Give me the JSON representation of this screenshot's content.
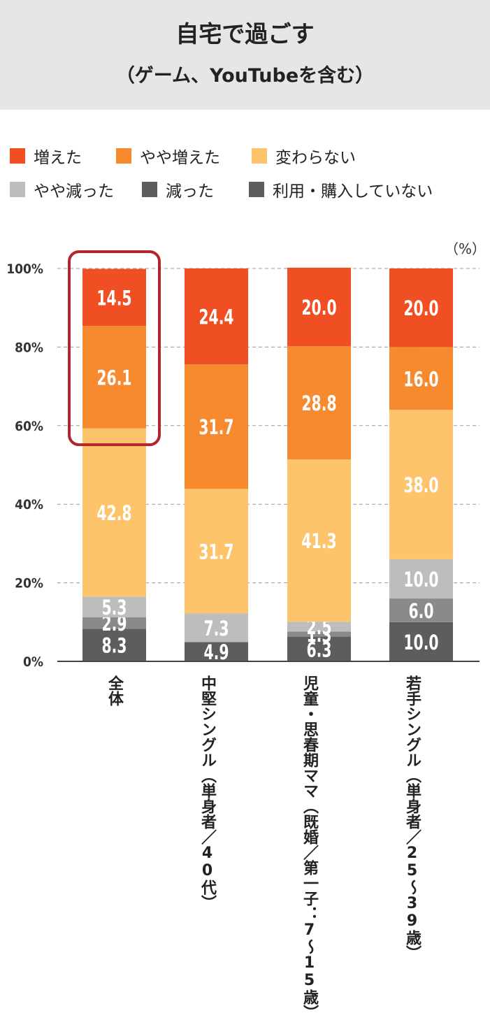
{
  "title": "自宅で過ごす",
  "subtitle": "（ゲーム、YouTubeを含む）",
  "unit_label": "（%）",
  "colors": {
    "increased": "#f04e23",
    "slightly_increased": "#f7892e",
    "unchanged": "#fdc46c",
    "slightly_decreased": "#bdbdbd",
    "decreased": "#8a8a8a",
    "not_used": "#5d5d5d",
    "highlight": "#b0262d"
  },
  "legend": [
    {
      "label": "増えた",
      "color": "#f04e23"
    },
    {
      "label": "やや増えた",
      "color": "#f7892e"
    },
    {
      "label": "変わらない",
      "color": "#fdc46c"
    },
    {
      "label": "やや減った",
      "color": "#bdbdbd"
    },
    {
      "label": "減った",
      "color": "#5d5d5d"
    },
    {
      "label": "利用・購入していない",
      "color": "#5d5d5d"
    }
  ],
  "chart_data": {
    "type": "bar",
    "stacked": true,
    "ylim": [
      0,
      100
    ],
    "yticks": [
      "0%",
      "20%",
      "40%",
      "60%",
      "80%",
      "100%"
    ],
    "grid": true,
    "categories": [
      "全体",
      "中堅シングル（単身者／40代）",
      "児童・思春期ママ（既婚／第一子：7〜15歳）",
      "若手シングル（単身者／25〜39歳）"
    ],
    "category_labels": [
      {
        "main": "全体",
        "sub": ""
      },
      {
        "main": "中堅シングル",
        "sub": "（単身者／40代）"
      },
      {
        "main": "児童・思春期ママ",
        "sub": "（既婚／第一子：7〜15歳）"
      },
      {
        "main": "若手シングル",
        "sub": "（単身者／25〜39歳）"
      }
    ],
    "series": [
      {
        "name": "利用・購入していない",
        "values": [
          8.3,
          4.9,
          6.3,
          10.0
        ],
        "labels": [
          "8.3",
          "4.9",
          "6.3",
          "10.0"
        ]
      },
      {
        "name": "減った",
        "values": [
          2.9,
          0,
          1.3,
          6.0
        ],
        "labels": [
          "2.9",
          "",
          "1.3",
          "6.0"
        ]
      },
      {
        "name": "やや減った",
        "values": [
          5.3,
          7.3,
          2.5,
          10.0
        ],
        "labels": [
          "5.3",
          "7.3",
          "2.5",
          "10.0"
        ]
      },
      {
        "name": "変わらない",
        "values": [
          42.8,
          31.7,
          41.3,
          38.0
        ],
        "labels": [
          "42.8",
          "31.7",
          "41.3",
          "38.0"
        ]
      },
      {
        "name": "やや増えた",
        "values": [
          26.1,
          31.7,
          28.8,
          16.0
        ],
        "labels": [
          "26.1",
          "31.7",
          "28.8",
          "16.0"
        ]
      },
      {
        "name": "増えた",
        "values": [
          14.5,
          24.4,
          20.0,
          20.0
        ],
        "labels": [
          "14.5",
          "24.4",
          "20.0",
          "20.0"
        ]
      }
    ],
    "highlight": {
      "category_index": 0,
      "series": [
        "増えた",
        "やや増えた"
      ]
    }
  }
}
